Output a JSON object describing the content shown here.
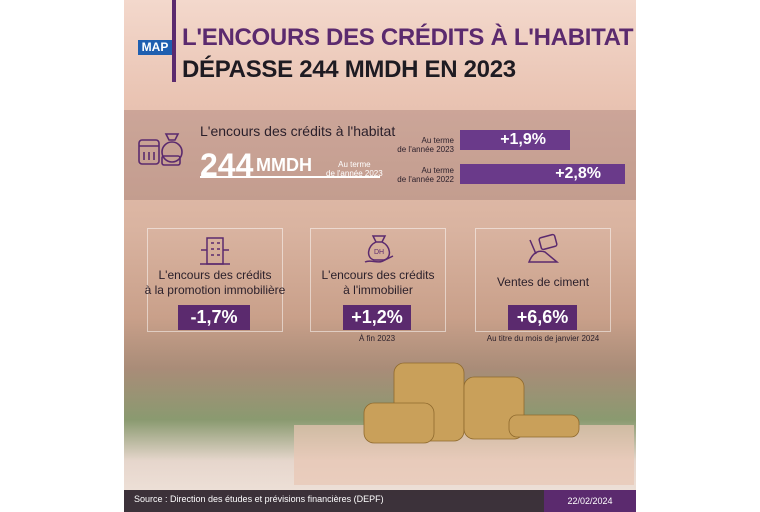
{
  "header": {
    "logo": "MAP",
    "title": [
      "L'ENCOURS DES CRÉDITS À L'HABITAT",
      "DÉPASSE 244 MMDH EN 2023"
    ]
  },
  "highlight": {
    "label": "L'encours des crédits à l'habitat",
    "value": "244",
    "unit": "MMDH",
    "note": [
      "Au terme",
      "de l'année 2023"
    ]
  },
  "growth": [
    {
      "label": [
        "Au terme",
        "de l'année 2023"
      ],
      "value": "+1,9%"
    },
    {
      "label": [
        "Au terme",
        "de l'année 2022"
      ],
      "value": "+2,8%"
    }
  ],
  "cards": [
    {
      "label": [
        "L'encours des crédits",
        "à la promotion immobilière"
      ],
      "value": "-1,7%"
    },
    {
      "label": [
        "L'encours des crédits",
        "à l'immobilier"
      ],
      "value": "+1,2%",
      "note": "À fin 2023"
    },
    {
      "label": [
        "Ventes de ciment"
      ],
      "value": "+6,6%",
      "note": "Au titre du mois de janvier 2024"
    }
  ],
  "footer": {
    "source": "Source : Direction des études et prévisions financières (DEPF)",
    "date": "22/02/2024"
  }
}
